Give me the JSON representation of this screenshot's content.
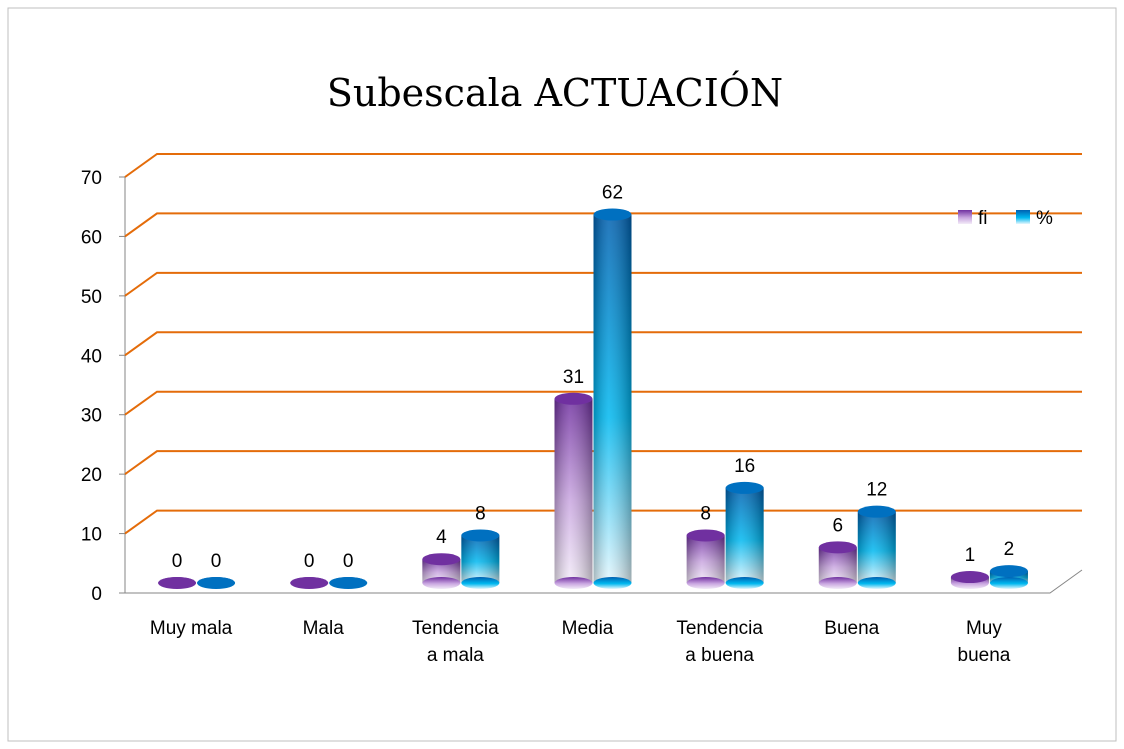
{
  "chart_data": {
    "type": "bar3d",
    "title": "Subescala ACTUACIÓN",
    "categories": [
      "Muy mala",
      "Mala",
      "Tendencia\na mala",
      "Media",
      "Tendencia\na buena",
      "Buena",
      "Muy\nbuena"
    ],
    "series": [
      {
        "name": "fi",
        "color": "#7030a0",
        "values": [
          0,
          0,
          4,
          31,
          8,
          6,
          1
        ]
      },
      {
        "name": "%",
        "color": "#0070c0",
        "values": [
          0,
          0,
          8,
          62,
          16,
          12,
          2
        ]
      }
    ],
    "ylim": [
      0,
      70
    ],
    "yticks": [
      0,
      10,
      20,
      30,
      40,
      50,
      60,
      70
    ],
    "grid": true,
    "legend": "top-right"
  }
}
